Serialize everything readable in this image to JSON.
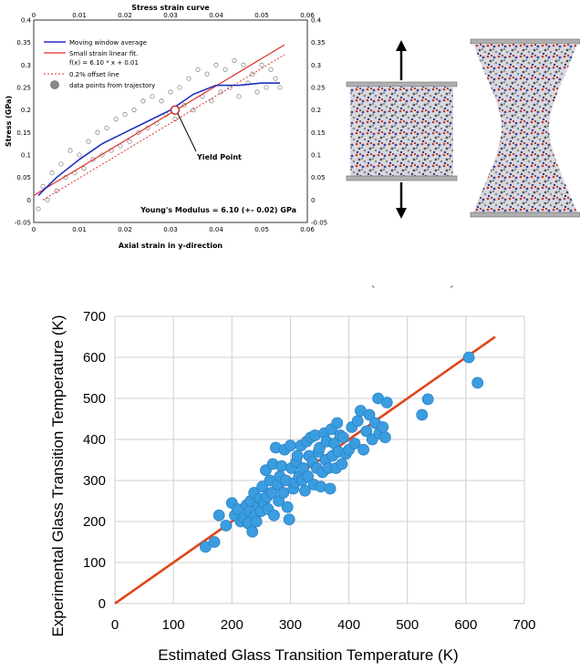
{
  "chart_data": [
    {
      "type": "scatter",
      "title": "Stress strain curve",
      "xlabel": "Axial strain in y-direction",
      "ylabel": "Stress (GPa)",
      "xlim": [
        0,
        0.06
      ],
      "ylim": [
        -0.05,
        0.4
      ],
      "xticks": [
        "0",
        "0.01",
        "0.02",
        "0.03",
        "0.04",
        "0.05",
        "0.06"
      ],
      "yticks": [
        "-0.05",
        "0",
        "0.05",
        "0.1",
        "0.15",
        "0.2",
        "0.25",
        "0.3",
        "0.35",
        "0.4"
      ],
      "legend": {
        "moving_avg": "Moving window average",
        "linear_fit": "Small strain linear fit.",
        "fit_eq": "f(x) = 6.10 * x + 0.01",
        "offset": "0.2% offset line",
        "points": "data points from trajectory"
      },
      "annotations": {
        "yield": "Yield Point",
        "modulus": "Young's Modulus = 6.10 (+- 0.02) GPa"
      },
      "series": [
        {
          "role": "moving-average",
          "color": "#1f2fbf",
          "x": [
            0.001,
            0.005,
            0.01,
            0.015,
            0.02,
            0.025,
            0.03,
            0.035,
            0.04,
            0.045,
            0.05,
            0.054
          ],
          "y": [
            0.01,
            0.05,
            0.09,
            0.125,
            0.15,
            0.175,
            0.2,
            0.235,
            0.255,
            0.255,
            0.26,
            0.26
          ]
        },
        {
          "role": "linear-fit",
          "color": "#e0302a",
          "x": [
            0.0,
            0.055
          ],
          "y": [
            0.01,
            0.345
          ]
        },
        {
          "role": "offset-line",
          "color": "#e0302a",
          "x": [
            0.002,
            0.055
          ],
          "y": [
            0.0,
            0.323
          ]
        },
        {
          "role": "data-points",
          "color": "#8a8a8a",
          "x": [
            0.001,
            0.002,
            0.003,
            0.004,
            0.005,
            0.006,
            0.007,
            0.008,
            0.009,
            0.01,
            0.011,
            0.012,
            0.013,
            0.014,
            0.015,
            0.016,
            0.017,
            0.018,
            0.019,
            0.02,
            0.021,
            0.022,
            0.023,
            0.024,
            0.025,
            0.026,
            0.027,
            0.028,
            0.029,
            0.03,
            0.031,
            0.032,
            0.033,
            0.034,
            0.035,
            0.036,
            0.037,
            0.038,
            0.039,
            0.04,
            0.041,
            0.042,
            0.043,
            0.044,
            0.045,
            0.046,
            0.047,
            0.048,
            0.049,
            0.05,
            0.051,
            0.052,
            0.053,
            0.054
          ],
          "y": [
            -0.02,
            0.03,
            0.0,
            0.06,
            0.02,
            0.08,
            0.05,
            0.11,
            0.06,
            0.1,
            0.07,
            0.13,
            0.09,
            0.15,
            0.1,
            0.16,
            0.11,
            0.18,
            0.12,
            0.19,
            0.13,
            0.2,
            0.15,
            0.22,
            0.16,
            0.23,
            0.17,
            0.22,
            0.19,
            0.24,
            0.18,
            0.25,
            0.21,
            0.27,
            0.2,
            0.29,
            0.23,
            0.28,
            0.22,
            0.3,
            0.24,
            0.29,
            0.25,
            0.31,
            0.23,
            0.3,
            0.26,
            0.28,
            0.24,
            0.3,
            0.25,
            0.29,
            0.27,
            0.25
          ]
        }
      ],
      "yield_point": {
        "x": 0.031,
        "y": 0.2
      }
    },
    {
      "type": "scatter",
      "xlabel": "Estimated Glass Transition Temperature (K)",
      "ylabel": "Experimental Glass Transition Temperature (K)",
      "xlim": [
        0,
        700
      ],
      "ylim": [
        0,
        700
      ],
      "xticks": [
        "0",
        "100",
        "200",
        "300",
        "400",
        "500",
        "600",
        "700"
      ],
      "yticks": [
        "0",
        "100",
        "200",
        "300",
        "400",
        "500",
        "600",
        "700"
      ],
      "grid": true,
      "fit_line": {
        "color": "#e0451a",
        "x": [
          0,
          650
        ],
        "y": [
          0,
          650
        ]
      },
      "marker_color": "#3a9de0",
      "points": [
        [
          155,
          138
        ],
        [
          170,
          150
        ],
        [
          178,
          215
        ],
        [
          190,
          190
        ],
        [
          200,
          245
        ],
        [
          205,
          215
        ],
        [
          210,
          230
        ],
        [
          215,
          200
        ],
        [
          220,
          210
        ],
        [
          225,
          240
        ],
        [
          228,
          195
        ],
        [
          230,
          225
        ],
        [
          232,
          250
        ],
        [
          235,
          175
        ],
        [
          238,
          270
        ],
        [
          240,
          215
        ],
        [
          242,
          200
        ],
        [
          245,
          240
        ],
        [
          248,
          255
        ],
        [
          250,
          225
        ],
        [
          252,
          285
        ],
        [
          255,
          245
        ],
        [
          258,
          325
        ],
        [
          260,
          260
        ],
        [
          262,
          230
        ],
        [
          265,
          300
        ],
        [
          268,
          270
        ],
        [
          270,
          340
        ],
        [
          272,
          215
        ],
        [
          275,
          380
        ],
        [
          278,
          290
        ],
        [
          280,
          250
        ],
        [
          282,
          310
        ],
        [
          285,
          335
        ],
        [
          288,
          270
        ],
        [
          290,
          375
        ],
        [
          292,
          300
        ],
        [
          295,
          235
        ],
        [
          298,
          205
        ],
        [
          300,
          385
        ],
        [
          302,
          330
        ],
        [
          305,
          280
        ],
        [
          308,
          295
        ],
        [
          310,
          345
        ],
        [
          312,
          360
        ],
        [
          315,
          310
        ],
        [
          318,
          385
        ],
        [
          320,
          300
        ],
        [
          322,
          330
        ],
        [
          325,
          275
        ],
        [
          328,
          395
        ],
        [
          330,
          310
        ],
        [
          332,
          360
        ],
        [
          335,
          405
        ],
        [
          338,
          345
        ],
        [
          340,
          290
        ],
        [
          342,
          410
        ],
        [
          345,
          330
        ],
        [
          348,
          370
        ],
        [
          350,
          380
        ],
        [
          352,
          285
        ],
        [
          355,
          320
        ],
        [
          358,
          415
        ],
        [
          360,
          350
        ],
        [
          362,
          395
        ],
        [
          365,
          330
        ],
        [
          368,
          280
        ],
        [
          370,
          425
        ],
        [
          372,
          360
        ],
        [
          375,
          390
        ],
        [
          378,
          330
        ],
        [
          380,
          440
        ],
        [
          382,
          370
        ],
        [
          385,
          410
        ],
        [
          388,
          340
        ],
        [
          390,
          405
        ],
        [
          395,
          365
        ],
        [
          400,
          375
        ],
        [
          405,
          430
        ],
        [
          410,
          390
        ],
        [
          415,
          445
        ],
        [
          420,
          470
        ],
        [
          425,
          375
        ],
        [
          430,
          420
        ],
        [
          435,
          460
        ],
        [
          440,
          400
        ],
        [
          445,
          440
        ],
        [
          450,
          500
        ],
        [
          452,
          415
        ],
        [
          458,
          430
        ],
        [
          462,
          405
        ],
        [
          465,
          490
        ],
        [
          525,
          460
        ],
        [
          535,
          498
        ],
        [
          605,
          600
        ],
        [
          620,
          538
        ]
      ]
    }
  ],
  "figure_labels": {
    "axis_x": "Estimated Glass Transition Temperature (K)",
    "axis_y": "Experimental Glass Transition Temperature (K)"
  }
}
